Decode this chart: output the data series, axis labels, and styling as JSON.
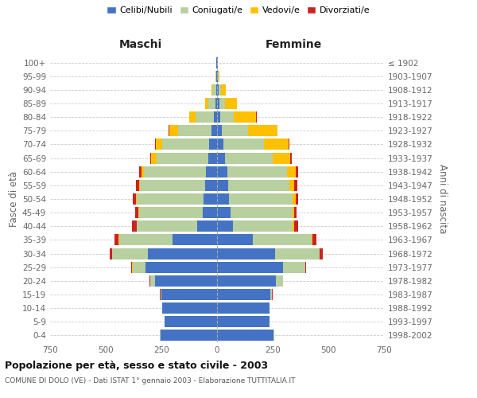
{
  "age_groups": [
    "0-4",
    "5-9",
    "10-14",
    "15-19",
    "20-24",
    "25-29",
    "30-34",
    "35-39",
    "40-44",
    "45-49",
    "50-54",
    "55-59",
    "60-64",
    "65-69",
    "70-74",
    "75-79",
    "80-84",
    "85-89",
    "90-94",
    "95-99",
    "100+"
  ],
  "birth_years": [
    "1998-2002",
    "1993-1997",
    "1988-1992",
    "1983-1987",
    "1978-1982",
    "1973-1977",
    "1968-1972",
    "1963-1967",
    "1958-1962",
    "1953-1957",
    "1948-1952",
    "1943-1947",
    "1938-1942",
    "1933-1937",
    "1928-1932",
    "1923-1927",
    "1918-1922",
    "1913-1917",
    "1908-1912",
    "1903-1907",
    "≤ 1902"
  ],
  "males_celibi": [
    255,
    235,
    245,
    250,
    280,
    320,
    310,
    200,
    90,
    65,
    60,
    55,
    50,
    40,
    35,
    25,
    15,
    8,
    5,
    3,
    2
  ],
  "males_coniugati": [
    1,
    1,
    2,
    5,
    20,
    60,
    160,
    240,
    270,
    285,
    300,
    290,
    280,
    230,
    210,
    150,
    80,
    30,
    15,
    4,
    1
  ],
  "males_vedovi": [
    0,
    0,
    0,
    0,
    0,
    1,
    1,
    2,
    2,
    3,
    5,
    5,
    10,
    25,
    30,
    40,
    30,
    15,
    5,
    1,
    0
  ],
  "males_divorziati": [
    0,
    0,
    0,
    1,
    2,
    5,
    10,
    20,
    20,
    15,
    15,
    15,
    10,
    5,
    3,
    2,
    1,
    0,
    0,
    0,
    0
  ],
  "females_nubili": [
    255,
    235,
    235,
    240,
    265,
    295,
    260,
    160,
    70,
    60,
    55,
    50,
    45,
    35,
    30,
    20,
    15,
    10,
    8,
    3,
    2
  ],
  "females_coniugate": [
    1,
    1,
    2,
    8,
    30,
    100,
    200,
    265,
    270,
    280,
    285,
    275,
    270,
    215,
    180,
    120,
    60,
    25,
    10,
    3,
    1
  ],
  "females_vedove": [
    0,
    0,
    0,
    0,
    0,
    1,
    2,
    3,
    5,
    8,
    12,
    20,
    40,
    80,
    110,
    130,
    100,
    55,
    20,
    5,
    1
  ],
  "females_divorziate": [
    0,
    0,
    0,
    1,
    2,
    5,
    12,
    20,
    20,
    10,
    12,
    15,
    10,
    5,
    4,
    3,
    2,
    1,
    0,
    0,
    0
  ],
  "colors_celibi": "#4472c4",
  "colors_coniugati": "#b8cfa0",
  "colors_vedovi": "#ffc000",
  "colors_divorziati": "#cc2222",
  "xlim": 750,
  "title": "Popolazione per età, sesso e stato civile - 2003",
  "subtitle": "COMUNE DI DOLO (VE) - Dati ISTAT 1° gennaio 2003 - Elaborazione TUTTITALIA.IT",
  "ylabel_left": "Fasce di età",
  "ylabel_right": "Anni di nascita",
  "label_maschi": "Maschi",
  "label_femmine": "Femmine",
  "legend_labels": [
    "Celibi/Nubili",
    "Coniugati/e",
    "Vedovi/e",
    "Divorziati/e"
  ],
  "bg_color": "#ffffff",
  "grid_color": "#cccccc",
  "tick_color": "#666666"
}
